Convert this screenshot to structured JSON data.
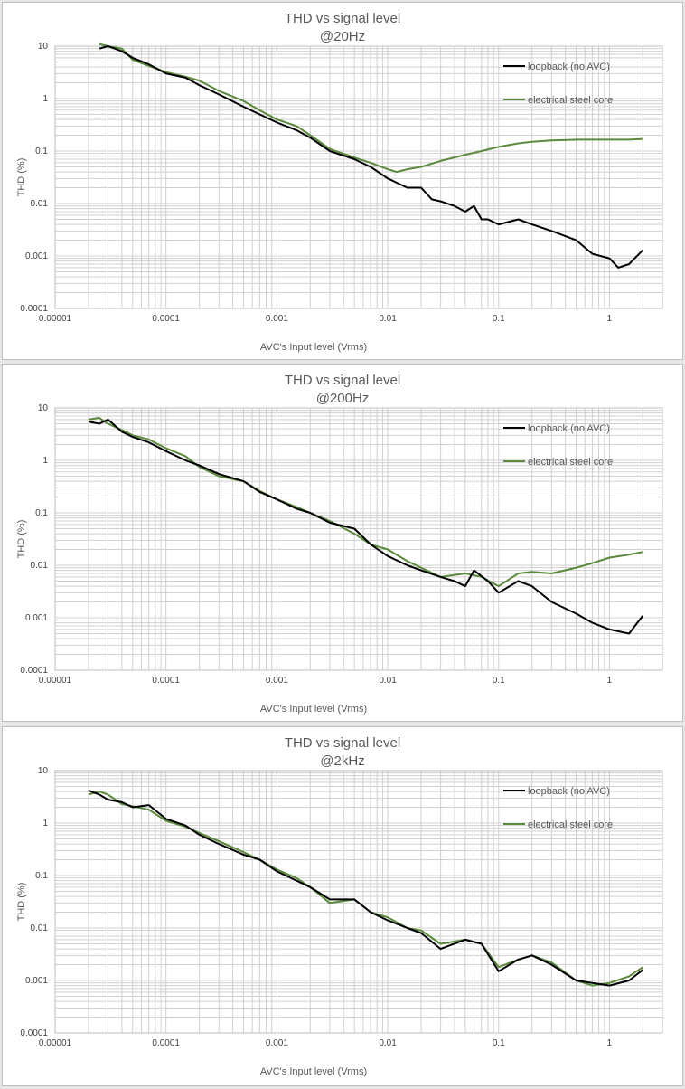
{
  "colors": {
    "loopback": "#000000",
    "steel": "#5b8a3c",
    "grid": "#d0d0d0",
    "axis": "#bfbfbf"
  },
  "chart_data": [
    {
      "type": "line",
      "title": "THD vs signal level",
      "subtitle": "@20Hz",
      "xlabel": "AVC's Input level (Vrms)",
      "ylabel": "THD (%)",
      "x_scale": "log",
      "y_scale": "log",
      "xlim": [
        1e-05,
        3
      ],
      "ylim": [
        0.0001,
        10
      ],
      "x_ticks": [
        "0.00001",
        "0.0001",
        "0.001",
        "0.01",
        "0.1",
        "1"
      ],
      "y_ticks": [
        "10",
        "1",
        "0.1",
        "0.01",
        "0.001",
        "0.0001"
      ],
      "grid": true,
      "legend_position": "top-right",
      "series": [
        {
          "name": "loopback (no AVC)",
          "color": "#000000",
          "x": [
            2.5e-05,
            3e-05,
            4e-05,
            5e-05,
            7e-05,
            0.0001,
            0.00015,
            0.0002,
            0.0003,
            0.0005,
            0.0007,
            0.001,
            0.0015,
            0.002,
            0.003,
            0.005,
            0.007,
            0.01,
            0.012,
            0.015,
            0.02,
            0.025,
            0.03,
            0.04,
            0.05,
            0.06,
            0.07,
            0.08,
            0.1,
            0.15,
            0.2,
            0.3,
            0.5,
            0.7,
            1,
            1.2,
            1.5,
            2
          ],
          "y": [
            9,
            10,
            8,
            6,
            4.5,
            3,
            2.5,
            1.8,
            1.2,
            0.7,
            0.5,
            0.35,
            0.25,
            0.18,
            0.1,
            0.07,
            0.05,
            0.03,
            0.025,
            0.02,
            0.02,
            0.012,
            0.011,
            0.009,
            0.007,
            0.009,
            0.005,
            0.005,
            0.004,
            0.005,
            0.004,
            0.003,
            0.002,
            0.0011,
            0.0009,
            0.0006,
            0.0007,
            0.0013
          ]
        },
        {
          "name": "electrical steel core",
          "color": "#5b8a3c",
          "x": [
            2.5e-05,
            3e-05,
            4e-05,
            5e-05,
            7e-05,
            0.0001,
            0.00015,
            0.0002,
            0.0003,
            0.0005,
            0.0007,
            0.001,
            0.0015,
            0.002,
            0.003,
            0.005,
            0.007,
            0.01,
            0.012,
            0.015,
            0.02,
            0.03,
            0.05,
            0.07,
            0.1,
            0.15,
            0.2,
            0.3,
            0.5,
            0.7,
            1,
            1.5,
            2
          ],
          "y": [
            11,
            10,
            9,
            5.5,
            4.2,
            3.2,
            2.6,
            2.2,
            1.4,
            0.9,
            0.6,
            0.4,
            0.3,
            0.2,
            0.11,
            0.075,
            0.06,
            0.045,
            0.04,
            0.045,
            0.05,
            0.065,
            0.085,
            0.1,
            0.12,
            0.14,
            0.15,
            0.16,
            0.165,
            0.165,
            0.165,
            0.165,
            0.17
          ]
        }
      ]
    },
    {
      "type": "line",
      "title": "THD vs signal level",
      "subtitle": "@200Hz",
      "xlabel": "AVC's Input level (Vrms)",
      "ylabel": "THD (%)",
      "x_scale": "log",
      "y_scale": "log",
      "xlim": [
        1e-05,
        3
      ],
      "ylim": [
        0.0001,
        10
      ],
      "x_ticks": [
        "0.00001",
        "0.0001",
        "0.001",
        "0.01",
        "0.1",
        "1"
      ],
      "y_ticks": [
        "10",
        "1",
        "0.1",
        "0.01",
        "0.001",
        "0.0001"
      ],
      "grid": true,
      "legend_position": "top-right",
      "series": [
        {
          "name": "loopback (no AVC)",
          "color": "#000000",
          "x": [
            2e-05,
            2.5e-05,
            3e-05,
            4e-05,
            5e-05,
            7e-05,
            0.0001,
            0.00015,
            0.0002,
            0.0003,
            0.0005,
            0.0007,
            0.001,
            0.0015,
            0.002,
            0.003,
            0.005,
            0.007,
            0.01,
            0.015,
            0.02,
            0.03,
            0.04,
            0.05,
            0.06,
            0.08,
            0.1,
            0.15,
            0.2,
            0.3,
            0.5,
            0.7,
            1,
            1.5,
            2
          ],
          "y": [
            5.5,
            5,
            6,
            3.5,
            2.8,
            2.2,
            1.5,
            1,
            0.8,
            0.55,
            0.4,
            0.25,
            0.18,
            0.12,
            0.1,
            0.065,
            0.05,
            0.025,
            0.015,
            0.01,
            0.008,
            0.006,
            0.005,
            0.004,
            0.008,
            0.005,
            0.003,
            0.005,
            0.004,
            0.002,
            0.0012,
            0.0008,
            0.0006,
            0.0005,
            0.0011
          ]
        },
        {
          "name": "electrical steel core",
          "color": "#5b8a3c",
          "x": [
            2e-05,
            2.5e-05,
            3e-05,
            4e-05,
            5e-05,
            7e-05,
            0.0001,
            0.00015,
            0.0002,
            0.0003,
            0.0005,
            0.0007,
            0.001,
            0.0015,
            0.002,
            0.003,
            0.005,
            0.007,
            0.01,
            0.015,
            0.02,
            0.03,
            0.05,
            0.07,
            0.1,
            0.15,
            0.2,
            0.3,
            0.5,
            0.7,
            1,
            1.5,
            2
          ],
          "y": [
            6,
            6.5,
            5,
            3.8,
            3,
            2.5,
            1.7,
            1.2,
            0.75,
            0.5,
            0.4,
            0.26,
            0.18,
            0.13,
            0.1,
            0.07,
            0.04,
            0.025,
            0.02,
            0.012,
            0.009,
            0.006,
            0.007,
            0.006,
            0.004,
            0.007,
            0.0075,
            0.007,
            0.009,
            0.011,
            0.014,
            0.016,
            0.018
          ]
        }
      ]
    },
    {
      "type": "line",
      "title": "THD vs signal level",
      "subtitle": "@2kHz",
      "xlabel": "AVC's Input level (Vrms)",
      "ylabel": "THD (%)",
      "x_scale": "log",
      "y_scale": "log",
      "xlim": [
        1e-05,
        3
      ],
      "ylim": [
        0.0001,
        10
      ],
      "x_ticks": [
        "0.00001",
        "0.0001",
        "0.001",
        "0.01",
        "0.1",
        "1"
      ],
      "y_ticks": [
        "10",
        "1",
        "0.1",
        "0.01",
        "0.001",
        "0.0001"
      ],
      "grid": true,
      "legend_position": "top-right",
      "series": [
        {
          "name": "loopback (no AVC)",
          "color": "#000000",
          "x": [
            2e-05,
            2.5e-05,
            3e-05,
            4e-05,
            5e-05,
            7e-05,
            0.0001,
            0.00015,
            0.0002,
            0.0003,
            0.0005,
            0.0007,
            0.001,
            0.0015,
            0.002,
            0.003,
            0.005,
            0.007,
            0.01,
            0.015,
            0.02,
            0.03,
            0.05,
            0.07,
            0.1,
            0.15,
            0.2,
            0.3,
            0.5,
            0.7,
            1,
            1.5,
            2
          ],
          "y": [
            4.2,
            3.5,
            2.8,
            2.5,
            2,
            2.2,
            1.2,
            0.9,
            0.6,
            0.4,
            0.25,
            0.2,
            0.12,
            0.08,
            0.06,
            0.035,
            0.035,
            0.02,
            0.014,
            0.01,
            0.008,
            0.004,
            0.006,
            0.005,
            0.0015,
            0.0025,
            0.003,
            0.002,
            0.001,
            0.0009,
            0.0008,
            0.001,
            0.0016
          ]
        },
        {
          "name": "electrical steel core",
          "color": "#5b8a3c",
          "x": [
            2e-05,
            2.5e-05,
            3e-05,
            4e-05,
            5e-05,
            7e-05,
            0.0001,
            0.00015,
            0.0002,
            0.0003,
            0.0005,
            0.0007,
            0.001,
            0.0015,
            0.002,
            0.003,
            0.005,
            0.007,
            0.01,
            0.015,
            0.02,
            0.03,
            0.05,
            0.07,
            0.1,
            0.15,
            0.2,
            0.3,
            0.5,
            0.7,
            1,
            1.5,
            2
          ],
          "y": [
            3.5,
            4,
            3.5,
            2.3,
            2.1,
            1.8,
            1.1,
            0.85,
            0.65,
            0.45,
            0.28,
            0.2,
            0.13,
            0.09,
            0.06,
            0.03,
            0.035,
            0.02,
            0.016,
            0.01,
            0.009,
            0.005,
            0.006,
            0.005,
            0.0018,
            0.0025,
            0.003,
            0.0022,
            0.001,
            0.0008,
            0.0009,
            0.0012,
            0.0018
          ]
        }
      ]
    }
  ]
}
